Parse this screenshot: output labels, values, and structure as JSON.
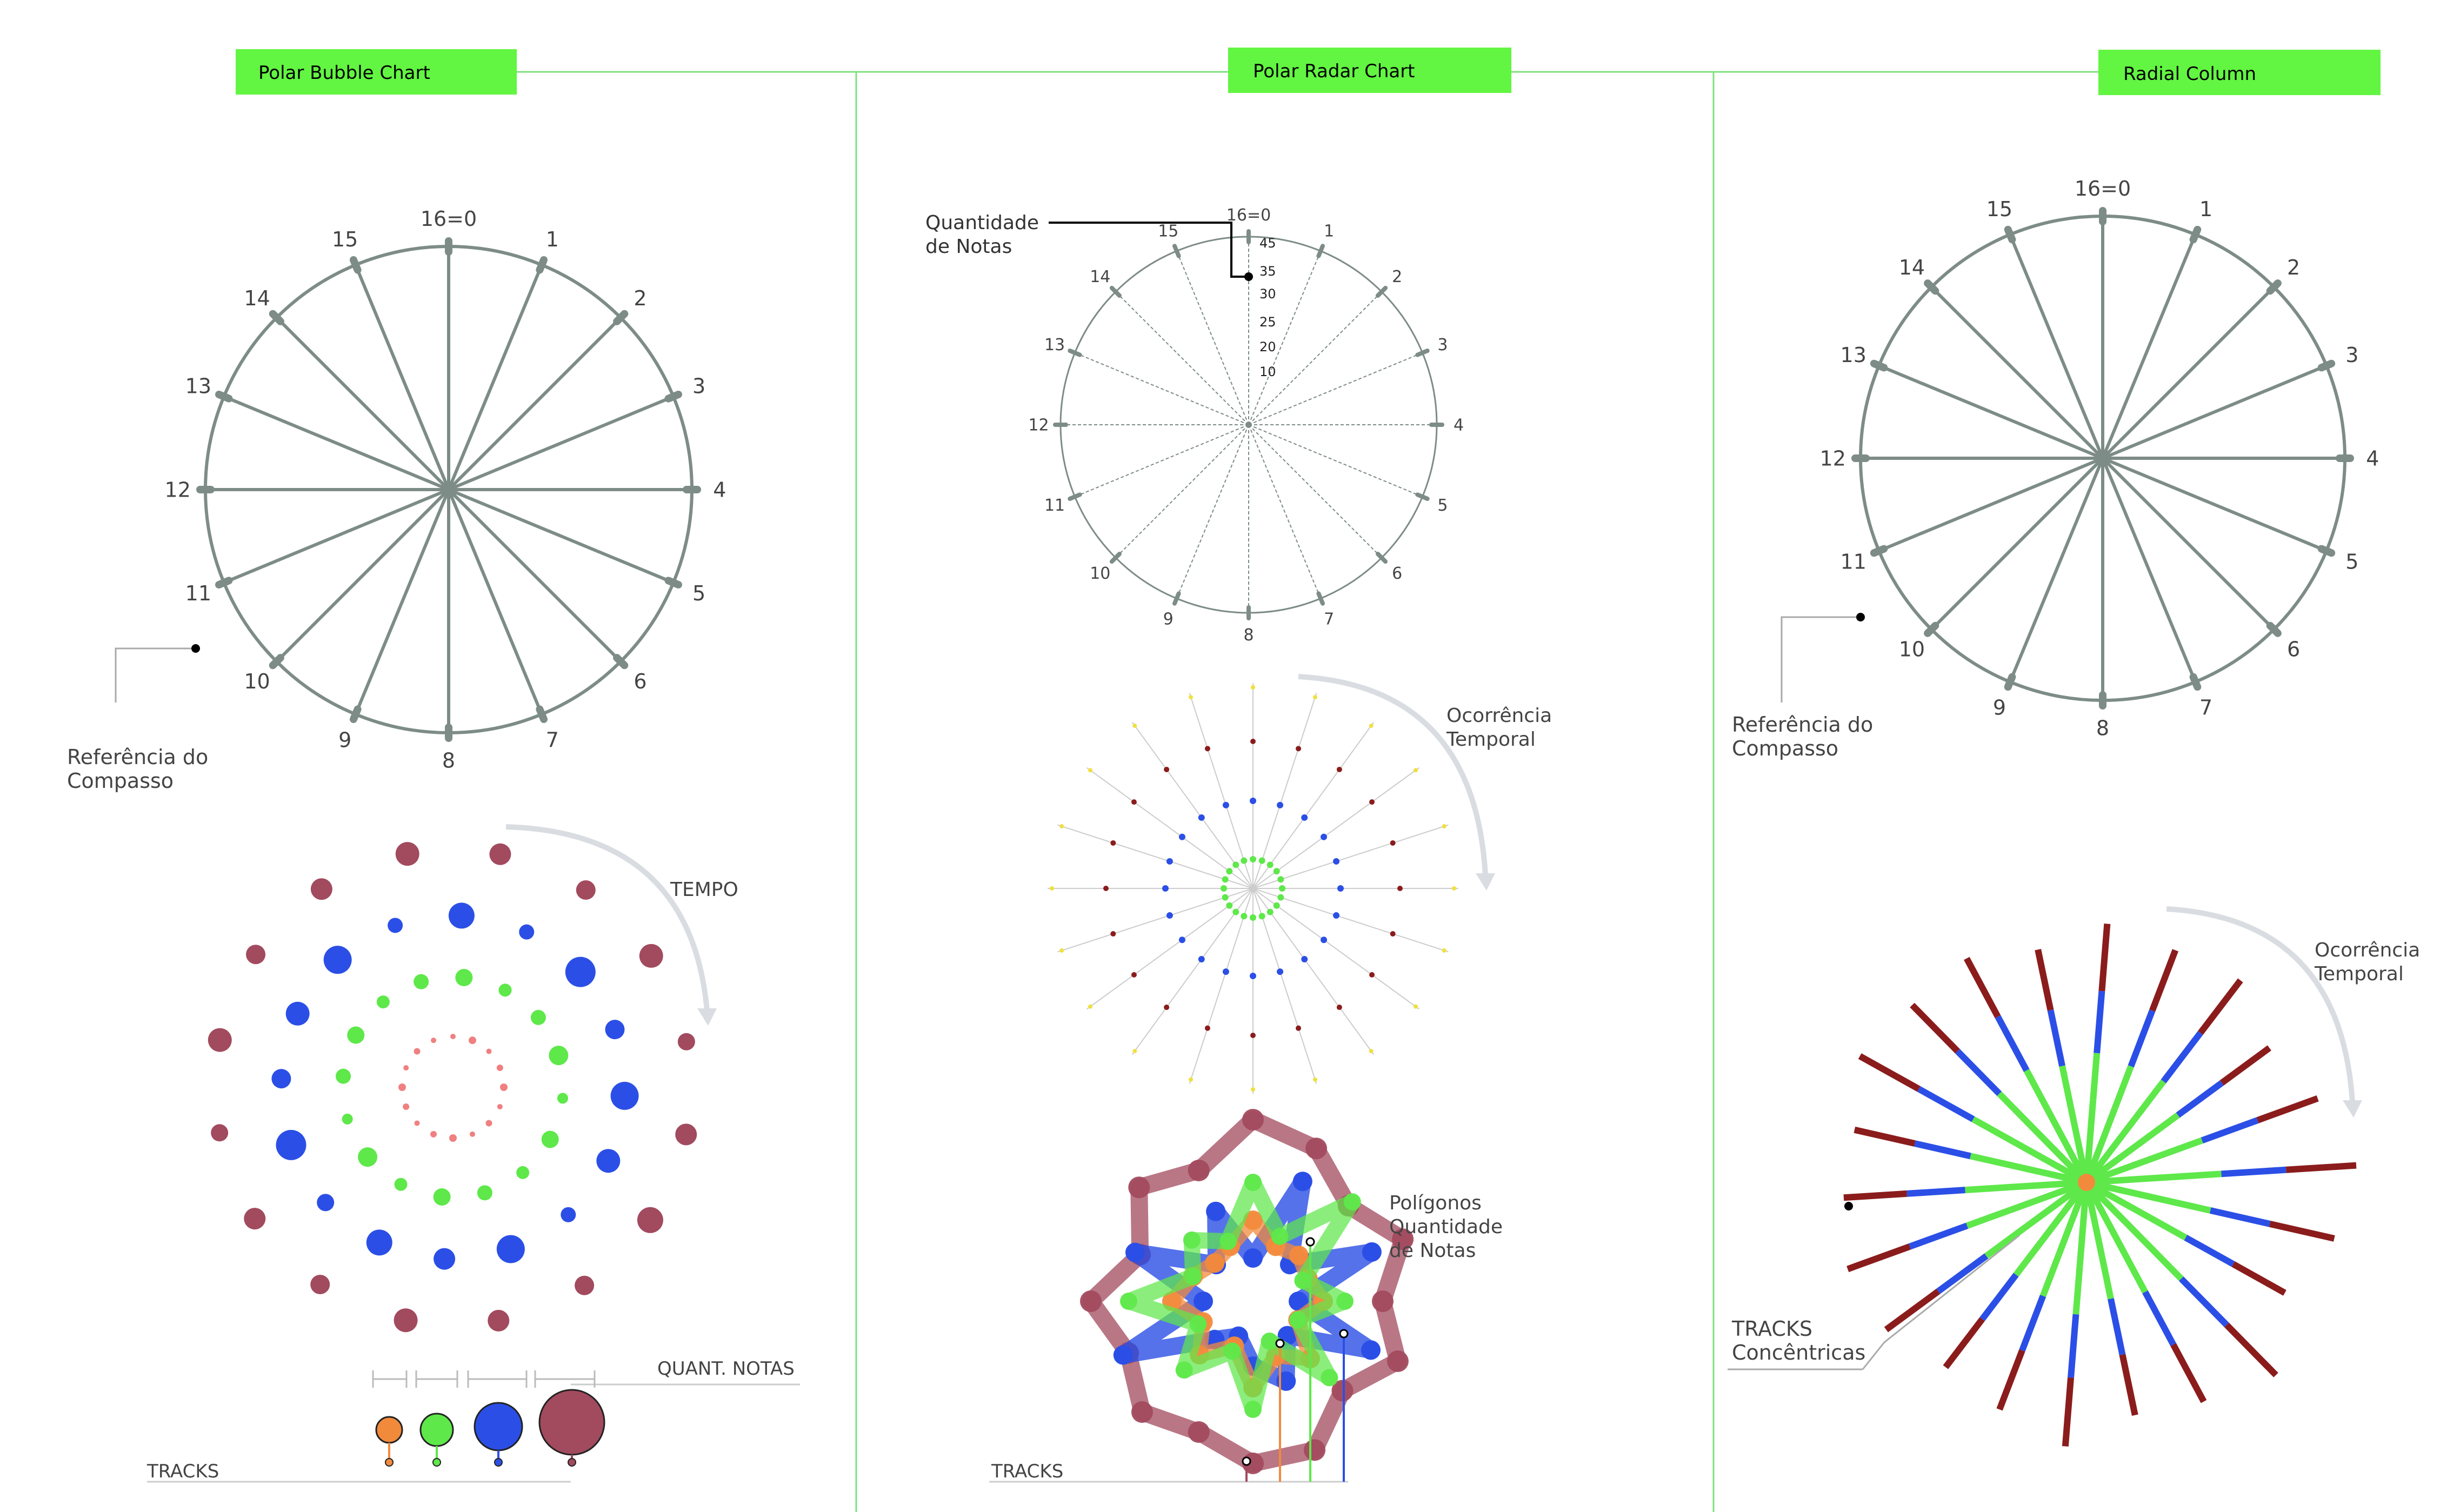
{
  "colors": {
    "header_fill": "#62f542",
    "divider": "#7fe07f",
    "dial": "#7d8c86",
    "red_track": "#a24a5e",
    "blue_track": "#2b4fe6",
    "green_track": "#5ee84a",
    "orange_track": "#f28a3c",
    "salmon": "#f08080",
    "yellow": "#efe040",
    "darkred": "#8b1c1c",
    "arrow": "#d9dde2"
  },
  "sections": [
    {
      "header": "Polar Bubble Chart"
    },
    {
      "header": "Polar Radar Chart"
    },
    {
      "header": "Radial Column"
    }
  ],
  "dial": {
    "labels": [
      "16=0",
      "1",
      "2",
      "3",
      "4",
      "5",
      "6",
      "7",
      "8",
      "9",
      "10",
      "11",
      "12",
      "13",
      "14",
      "15"
    ]
  },
  "bubble": {
    "measure_ref": "Referência do\nCompasso",
    "time_label": "TEMPO",
    "legend_label": "QUANT. NOTAS",
    "tracks_label": "TRACKS"
  },
  "radar": {
    "qty_label": "Quantidade\nde Notas",
    "scale": [
      "45",
      "35",
      "30",
      "25",
      "20",
      "10"
    ],
    "temporal_label": "Ocorrência\nTemporal",
    "poly_label": "Polígonos\nQuantidade\nde Notas",
    "tracks_label": "TRACKS"
  },
  "radial": {
    "measure_ref": "Referência do\nCompasso",
    "temporal_label": "Ocorrência\nTemporal",
    "tracks_label": "TRACKS\nConcêntricas"
  }
}
